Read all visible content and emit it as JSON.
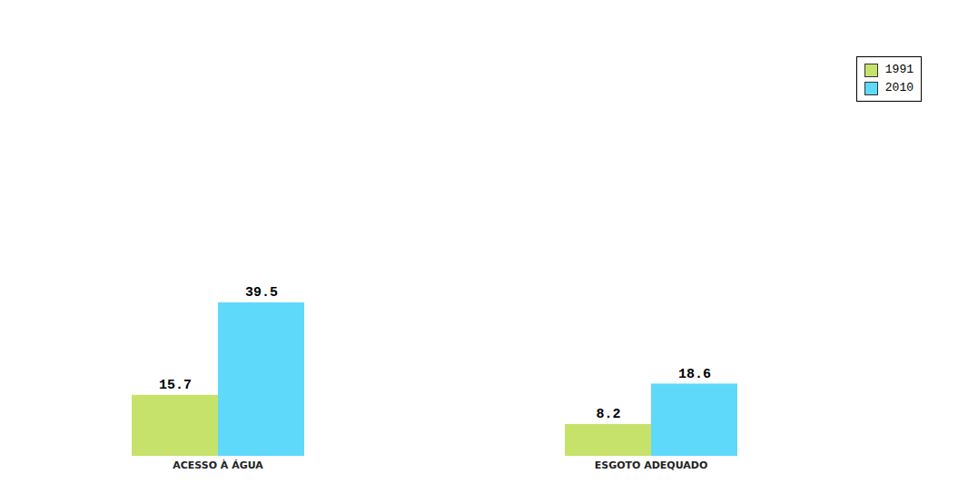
{
  "chart_data": {
    "type": "bar",
    "categories": [
      "ACESSO À ÁGUA",
      "ESGOTO ADEQUADO"
    ],
    "series": [
      {
        "name": "1991",
        "color": "#c6e26a",
        "values": [
          15.7,
          8.2
        ]
      },
      {
        "name": "2010",
        "color": "#5fd9f9",
        "values": [
          39.5,
          18.6
        ]
      }
    ],
    "ylim": [
      0,
      115
    ],
    "data_labels": true,
    "tick_labels": "x",
    "legend": "top-right"
  }
}
